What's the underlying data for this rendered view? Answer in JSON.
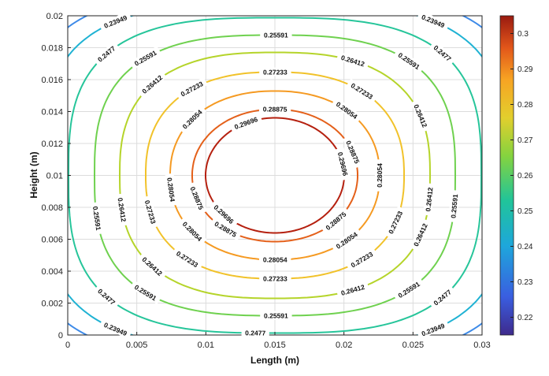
{
  "chart_data": {
    "type": "contour",
    "xlabel": "Length (m)",
    "ylabel": "Height (m)",
    "xlim": [
      0,
      0.03
    ],
    "ylim": [
      0,
      0.02
    ],
    "x_ticks": [
      "0",
      "0.005",
      "0.01",
      "0.015",
      "0.02",
      "0.025",
      "0.03"
    ],
    "y_ticks": [
      "0",
      "0.002",
      "0.004",
      "0.006",
      "0.008",
      "0.01",
      "0.012",
      "0.014",
      "0.016",
      "0.018",
      "0.02"
    ],
    "grid": true,
    "center": {
      "x": 0.015,
      "y": 0.01
    },
    "contour_levels": [
      {
        "value": "0.23127",
        "color": "#3d8ae8"
      },
      {
        "value": "0.23949",
        "color": "#1fb2d3"
      },
      {
        "value": "0.2477",
        "color": "#26c59a"
      },
      {
        "value": "0.25591",
        "color": "#6fd14f"
      },
      {
        "value": "0.26412",
        "color": "#b5d42a"
      },
      {
        "value": "0.27233",
        "color": "#f1c22a"
      },
      {
        "value": "0.28054",
        "color": "#f59a22"
      },
      {
        "value": "0.28875",
        "color": "#e4601a"
      },
      {
        "value": "0.29696",
        "color": "#b5200f"
      }
    ],
    "colorbar": {
      "min": 0.215,
      "max": 0.305,
      "ticks": [
        "0.22",
        "0.23",
        "0.24",
        "0.25",
        "0.26",
        "0.27",
        "0.28",
        "0.29",
        "0.3"
      ]
    }
  }
}
